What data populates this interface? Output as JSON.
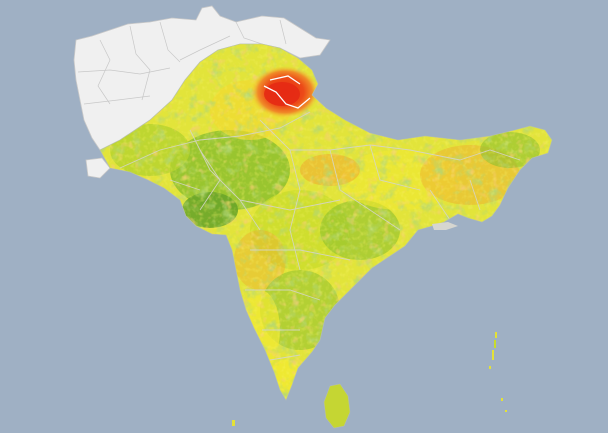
{
  "map": {
    "region": "South Asia",
    "layer": "heat-intensity",
    "colors": {
      "ocean": "#9fb0c4",
      "no_data_land": "#f0f0f0",
      "border_light": "#c8c8c8",
      "border_region": "#d5d5c8",
      "green_dark": "#5f9e2e",
      "green": "#8cbf2e",
      "yellow_green": "#c8dc2a",
      "yellow": "#f2ea30",
      "orange": "#f0a830",
      "red_orange": "#ec6a20",
      "red": "#e62a14"
    },
    "legend": []
  }
}
